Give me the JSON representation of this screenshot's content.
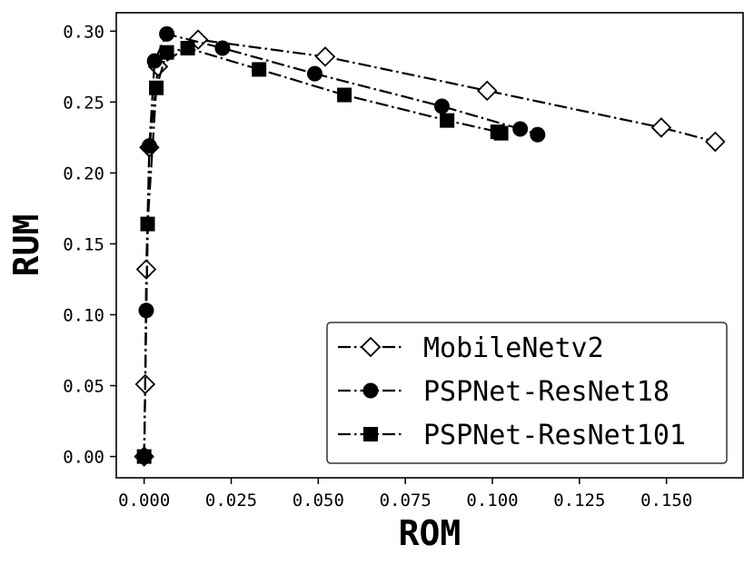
{
  "chart_data": {
    "type": "line",
    "title": "",
    "xlabel": "ROM",
    "ylabel": "RUM",
    "xlim": [
      -0.008,
      0.172
    ],
    "ylim": [
      -0.015,
      0.313
    ],
    "xticks": [
      0.0,
      0.025,
      0.05,
      0.075,
      0.1,
      0.125,
      0.15
    ],
    "xtick_labels": [
      "0.000",
      "0.025",
      "0.050",
      "0.075",
      "0.100",
      "0.125",
      "0.150"
    ],
    "yticks": [
      0.0,
      0.05,
      0.1,
      0.15,
      0.2,
      0.25,
      0.3
    ],
    "ytick_labels": [
      "0.00",
      "0.05",
      "0.10",
      "0.15",
      "0.20",
      "0.25",
      "0.30"
    ],
    "grid": false,
    "legend_position": "lower-right",
    "series": [
      {
        "name": "MobileNetv2",
        "marker": "diamond-open",
        "color": "#000000",
        "x": [
          0.0,
          0.0003,
          0.0006,
          0.0015,
          0.004,
          0.0155,
          0.052,
          0.0985,
          0.1485,
          0.164
        ],
        "y": [
          0.0,
          0.051,
          0.132,
          0.218,
          0.275,
          0.294,
          0.282,
          0.258,
          0.232,
          0.222
        ]
      },
      {
        "name": "PSPNet-ResNet18",
        "marker": "circle-filled",
        "color": "#000000",
        "x": [
          0.0,
          0.0006,
          0.0015,
          0.003,
          0.0065,
          0.0225,
          0.049,
          0.0855,
          0.108,
          0.113
        ],
        "y": [
          0.0,
          0.103,
          0.219,
          0.279,
          0.298,
          0.288,
          0.27,
          0.247,
          0.231,
          0.227
        ]
      },
      {
        "name": "PSPNet-ResNet101",
        "marker": "square-filled",
        "color": "#000000",
        "x": [
          0.0,
          0.001,
          0.0035,
          0.0065,
          0.0125,
          0.033,
          0.0575,
          0.087,
          0.1015,
          0.1025
        ],
        "y": [
          0.0,
          0.164,
          0.26,
          0.285,
          0.288,
          0.273,
          0.255,
          0.237,
          0.229,
          0.228
        ]
      }
    ]
  }
}
